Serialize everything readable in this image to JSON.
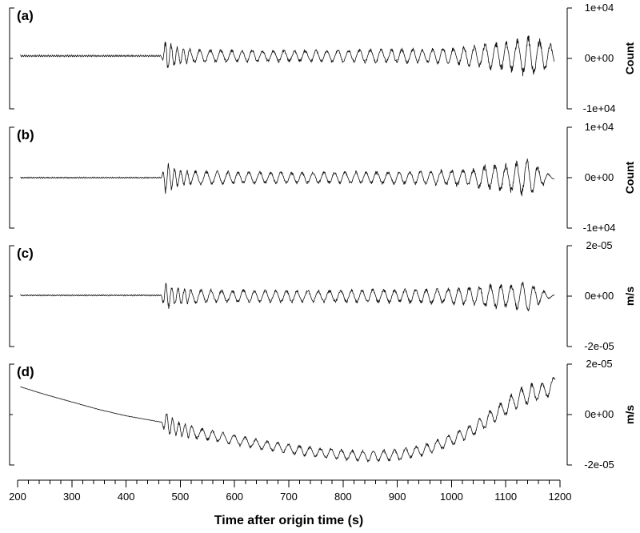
{
  "chart_data": {
    "type": "line",
    "xlabel": "Time after origin time (s)",
    "xlim": [
      200,
      1200
    ],
    "x_ticks": [
      200,
      300,
      400,
      500,
      600,
      700,
      800,
      900,
      1000,
      1100,
      1200
    ],
    "x_tick_labels": [
      "200",
      "300",
      "400",
      "500",
      "600",
      "700",
      "800",
      "900",
      "1000",
      "1100",
      "1200"
    ],
    "panels": [
      {
        "label": "(a)",
        "unit": "Count",
        "ylim": [
          -10000,
          10000
        ],
        "y_tick_labels": [
          "1e+04",
          "0e+00",
          "-1e+04"
        ],
        "y_ticks": [
          10000,
          0,
          -10000
        ],
        "series": {
          "x": [
            205,
            465,
            470,
            475,
            480,
            490,
            500,
            520,
            550,
            600,
            650,
            700,
            750,
            800,
            850,
            900,
            950,
            1000,
            1040,
            1060,
            1080,
            1100,
            1120,
            1140,
            1160,
            1180,
            1190
          ],
          "amplitude": [
            200,
            200,
            2500,
            4000,
            3000,
            2200,
            1800,
            1600,
            1500,
            1400,
            1300,
            1300,
            1300,
            1400,
            1500,
            1500,
            1600,
            1800,
            2200,
            2800,
            3000,
            3200,
            3600,
            4500,
            3800,
            2800,
            2200
          ],
          "offset": [
            500,
            500,
            500,
            500,
            500,
            500,
            500,
            500,
            500,
            500,
            500,
            500,
            500,
            500,
            500,
            500,
            500,
            500,
            500,
            500,
            500,
            500,
            500,
            500,
            500,
            500,
            500
          ]
        }
      },
      {
        "label": "(b)",
        "unit": "Count",
        "ylim": [
          -10000,
          10000
        ],
        "y_tick_labels": [
          "1e+04",
          "0e+00",
          "-1e+04"
        ],
        "y_ticks": [
          10000,
          0,
          -10000
        ],
        "series": {
          "x": [
            205,
            465,
            470,
            475,
            480,
            490,
            500,
            520,
            550,
            600,
            650,
            700,
            750,
            800,
            850,
            900,
            950,
            1000,
            1040,
            1060,
            1080,
            1100,
            1120,
            1140,
            1160,
            1180,
            1190
          ],
          "amplitude": [
            150,
            150,
            2500,
            4000,
            3000,
            2200,
            1800,
            1600,
            1500,
            1400,
            1300,
            1300,
            1300,
            1300,
            1400,
            1400,
            1500,
            1700,
            2000,
            2600,
            2800,
            3000,
            3400,
            4200,
            2500,
            800,
            300
          ],
          "offset": [
            0,
            0,
            0,
            0,
            0,
            0,
            0,
            0,
            0,
            0,
            0,
            0,
            0,
            0,
            0,
            0,
            0,
            0,
            0,
            0,
            0,
            0,
            0,
            0,
            0,
            0,
            0
          ]
        }
      },
      {
        "label": "(c)",
        "unit": "m/s",
        "ylim": [
          -2e-05,
          2e-05
        ],
        "y_tick_labels": [
          "2e-05",
          "0e+00",
          "-2e-05"
        ],
        "y_ticks": [
          2e-05,
          0,
          -2e-05
        ],
        "series": {
          "x": [
            205,
            465,
            470,
            475,
            480,
            490,
            500,
            520,
            550,
            600,
            650,
            700,
            750,
            800,
            850,
            900,
            950,
            1000,
            1040,
            1060,
            1080,
            1100,
            1120,
            1140,
            1160,
            1180,
            1190
          ],
          "amplitude": [
            3e-07,
            3e-07,
            5e-06,
            6.5e-06,
            5e-06,
            4e-06,
            3.5e-06,
            3e-06,
            3e-06,
            2.8e-06,
            2.7e-06,
            2.7e-06,
            2.7e-06,
            2.8e-06,
            3e-06,
            3e-06,
            3.2e-06,
            3.5e-06,
            4e-06,
            5e-06,
            5.5e-06,
            5.5e-06,
            5.8e-06,
            6.5e-06,
            4e-06,
            1e-06,
            5e-07
          ],
          "offset": [
            3e-07,
            3e-07,
            0,
            0,
            0,
            0,
            0,
            0,
            0,
            0,
            0,
            0,
            0,
            0,
            0,
            0,
            0,
            0,
            0,
            0,
            0,
            0,
            0,
            0,
            0,
            0,
            0
          ]
        }
      },
      {
        "label": "(d)",
        "unit": "m/s",
        "ylim": [
          -2e-05,
          2e-05
        ],
        "y_tick_labels": [
          "2e-05",
          "0e+00",
          "-2e-05"
        ],
        "y_ticks": [
          2e-05,
          0,
          -2e-05
        ],
        "series": {
          "x": [
            205,
            250,
            300,
            350,
            400,
            465,
            470,
            475,
            480,
            490,
            500,
            550,
            600,
            650,
            700,
            750,
            800,
            850,
            900,
            950,
            1000,
            1040,
            1080,
            1100,
            1120,
            1140,
            1160,
            1180,
            1192
          ],
          "amplitude": [
            1e-07,
            1e-07,
            1e-07,
            1e-07,
            1e-07,
            1e-07,
            4e-06,
            5.5e-06,
            4.5e-06,
            3.5e-06,
            3e-06,
            2.5e-06,
            2.3e-06,
            2.2e-06,
            2.2e-06,
            2.2e-06,
            2.3e-06,
            2.5e-06,
            2.5e-06,
            2.5e-06,
            2.7e-06,
            3e-06,
            3.5e-06,
            3.8e-06,
            4e-06,
            4.5e-06,
            4e-06,
            3e-06,
            2e-06
          ],
          "offset": [
            1.1e-05,
            8e-06,
            5e-06,
            2e-06,
            -5e-07,
            -3e-06,
            -3e-06,
            -3.5e-06,
            -4e-06,
            -5e-06,
            -6e-06,
            -8e-06,
            -1e-05,
            -1.2e-05,
            -1.35e-05,
            -1.5e-05,
            -1.6e-05,
            -1.65e-05,
            -1.6e-05,
            -1.4e-05,
            -1e-05,
            -6e-06,
            0,
            3e-06,
            6e-06,
            8e-06,
            9e-06,
            1e-05,
            1.4e-05
          ]
        }
      }
    ]
  }
}
